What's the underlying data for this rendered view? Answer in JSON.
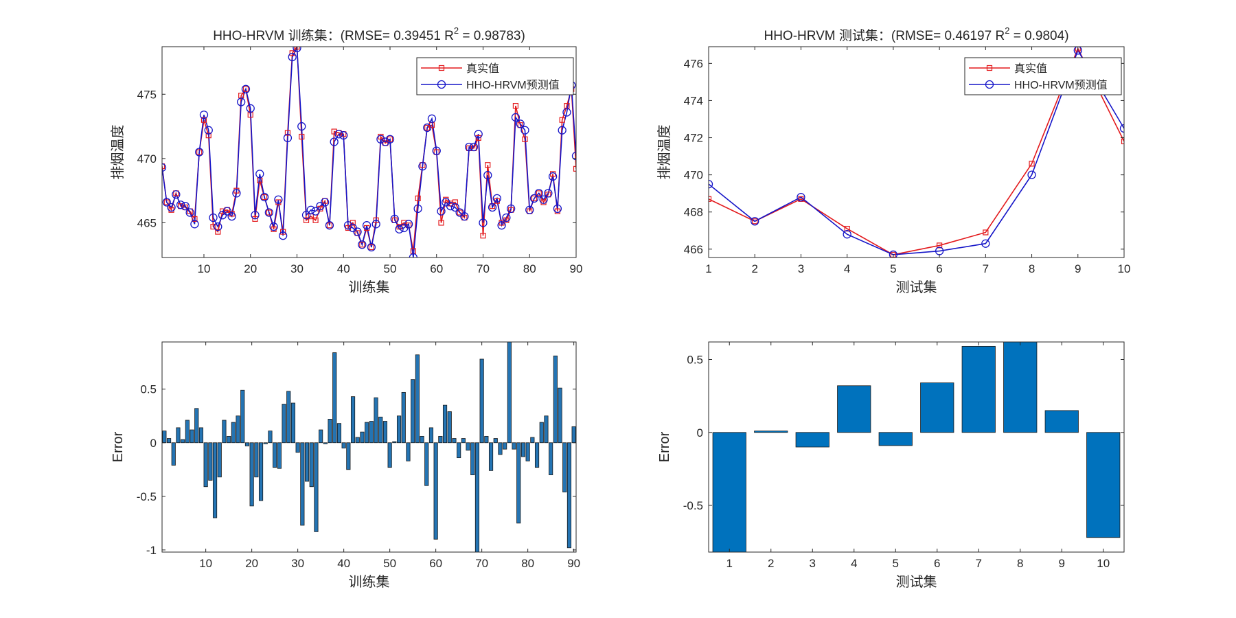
{
  "chart_data": [
    {
      "id": "train-line",
      "type": "line",
      "title": "HHO-HRVM 训练集：(RMSE= 0.39451 R",
      "title_sup": "2",
      "title_tail": " = 0.98783)",
      "xlabel": "训练集",
      "ylabel": "排烟温度",
      "xlim": [
        1,
        90
      ],
      "ylim": [
        462.3,
        478.7
      ],
      "xticks": [
        10,
        20,
        30,
        40,
        50,
        60,
        70,
        80,
        90
      ],
      "yticks": [
        465,
        470,
        475
      ],
      "legend": [
        "真实值",
        "HHO-HRVM预测值"
      ],
      "legend_position": "top-right",
      "series": [
        {
          "name": "真实值",
          "color": "#e3191c",
          "marker": "square",
          "values": [
            469.4,
            466.6,
            466.0,
            467.3,
            466.3,
            466.2,
            465.9,
            465.3,
            470.5,
            473.0,
            471.8,
            464.7,
            464.3,
            465.9,
            466.0,
            465.7,
            467.5,
            474.9,
            475.4,
            473.4,
            465.3,
            468.3,
            467.0,
            465.8,
            464.5,
            466.6,
            464.3,
            472.0,
            478.2,
            478.7,
            471.7,
            465.2,
            465.5,
            465.2,
            466.1,
            466.7,
            464.8,
            472.1,
            472.0,
            471.9,
            464.6,
            465.0,
            464.2,
            463.3,
            464.6,
            463.1,
            465.2,
            471.7,
            471.2,
            471.5,
            465.2,
            464.7,
            465.0,
            464.8,
            462.8,
            466.9,
            469.5,
            472.4,
            472.6,
            470.5,
            465.0,
            466.8,
            466.5,
            466.6,
            465.8,
            465.4,
            470.8,
            470.8,
            471.6,
            464.0,
            469.5,
            466.3,
            466.7,
            465.0,
            465.2,
            466.0,
            474.1,
            472.6,
            471.5,
            465.9,
            466.9,
            467.3,
            466.6,
            467.2,
            468.8,
            465.9,
            473.0,
            474.1,
            475.4,
            469.2
          ]
        },
        {
          "name": "HHO-HRVM预测值",
          "color": "#1515c8",
          "marker": "circle",
          "values": [
            469.3,
            466.6,
            466.2,
            467.2,
            466.4,
            466.3,
            465.8,
            464.9,
            470.5,
            473.4,
            472.2,
            465.4,
            464.7,
            465.6,
            465.9,
            465.5,
            467.3,
            474.4,
            475.4,
            473.9,
            465.6,
            468.8,
            467.0,
            465.8,
            464.7,
            466.8,
            464.0,
            471.6,
            477.9,
            478.6,
            472.5,
            465.6,
            466.0,
            465.9,
            466.3,
            466.6,
            464.8,
            471.3,
            471.9,
            471.8,
            464.8,
            464.6,
            464.3,
            463.3,
            464.8,
            463.1,
            464.9,
            471.5,
            471.3,
            471.5,
            465.3,
            464.5,
            464.6,
            464.9,
            462.3,
            466.1,
            469.4,
            472.4,
            473.1,
            470.6,
            465.9,
            466.6,
            466.3,
            466.2,
            465.8,
            465.5,
            470.9,
            470.9,
            471.9,
            465.0,
            468.7,
            466.2,
            466.9,
            464.8,
            465.4,
            466.1,
            473.2,
            472.7,
            472.2,
            466.0,
            466.9,
            467.3,
            466.8,
            467.3,
            468.6,
            466.1,
            472.2,
            473.6,
            475.7,
            470.2
          ]
        }
      ]
    },
    {
      "id": "test-line",
      "type": "line",
      "title": "HHO-HRVM 测试集：(RMSE= 0.46197 R",
      "title_sup": "2",
      "title_tail": " = 0.9804)",
      "xlabel": "测试集",
      "ylabel": "排烟温度",
      "xlim": [
        1,
        10
      ],
      "ylim": [
        465.55,
        476.9
      ],
      "xticks": [
        1,
        2,
        3,
        4,
        5,
        6,
        7,
        8,
        9,
        10
      ],
      "yticks": [
        466,
        468,
        470,
        472,
        474,
        476
      ],
      "legend": [
        "真实值",
        "HHO-HRVM预测值"
      ],
      "legend_position": "top-right",
      "series": [
        {
          "name": "真实值",
          "color": "#e3191c",
          "marker": "square",
          "values": [
            468.7,
            467.5,
            468.7,
            467.1,
            465.7,
            466.2,
            466.9,
            470.6,
            476.8,
            471.8
          ]
        },
        {
          "name": "HHO-HRVM预测值",
          "color": "#1515c8",
          "marker": "circle",
          "values": [
            469.5,
            467.5,
            468.8,
            466.8,
            465.7,
            465.9,
            466.3,
            470.0,
            476.7,
            472.5
          ]
        }
      ]
    },
    {
      "id": "train-error",
      "type": "bar",
      "title": "",
      "xlabel": "训练集",
      "ylabel": "Error",
      "xlim": [
        0.5,
        90.5
      ],
      "ylim": [
        -1.02,
        0.94
      ],
      "xticks": [
        10,
        20,
        30,
        40,
        50,
        60,
        70,
        80,
        90
      ],
      "yticks": [
        -1,
        -0.5,
        0,
        0.5
      ],
      "color": "#2474b3",
      "values": [
        0.11,
        0.04,
        -0.21,
        0.14,
        0.03,
        0.21,
        0.12,
        0.32,
        0.14,
        -0.41,
        -0.35,
        -0.7,
        -0.32,
        0.21,
        0.06,
        0.19,
        0.25,
        0.49,
        -0.03,
        -0.59,
        -0.32,
        -0.54,
        -0.01,
        0.11,
        -0.23,
        -0.24,
        0.36,
        0.48,
        0.37,
        -0.09,
        -0.77,
        -0.36,
        -0.41,
        -0.83,
        0.12,
        -0.01,
        0.22,
        0.84,
        0.18,
        -0.05,
        -0.25,
        0.43,
        0.05,
        0.1,
        0.19,
        0.2,
        0.42,
        0.24,
        0.2,
        -0.23,
        0.01,
        0.25,
        0.47,
        -0.17,
        0.59,
        0.82,
        0.06,
        -0.4,
        0.14,
        -0.9,
        0.06,
        0.35,
        0.29,
        0.04,
        -0.14,
        0.04,
        -0.07,
        -0.3,
        -1.02,
        0.78,
        0.06,
        -0.26,
        0.04,
        -0.11,
        -0.06,
        0.94,
        -0.06,
        -0.75,
        -0.13,
        -0.17,
        0.05,
        -0.23,
        0.19,
        0.25,
        -0.3,
        0.81,
        0.51,
        -0.46,
        -0.98,
        0.15
      ]
    },
    {
      "id": "test-error",
      "type": "bar",
      "title": "",
      "xlabel": "测试集",
      "ylabel": "Error",
      "xlim": [
        0.5,
        10.5
      ],
      "ylim": [
        -0.82,
        0.62
      ],
      "xticks": [
        1,
        2,
        3,
        4,
        5,
        6,
        7,
        8,
        9,
        10
      ],
      "yticks": [
        -0.5,
        0,
        0.5
      ],
      "color": "#0072bd",
      "values": [
        -0.82,
        0.01,
        -0.1,
        0.32,
        -0.09,
        0.34,
        0.59,
        0.62,
        0.15,
        -0.72
      ]
    }
  ]
}
